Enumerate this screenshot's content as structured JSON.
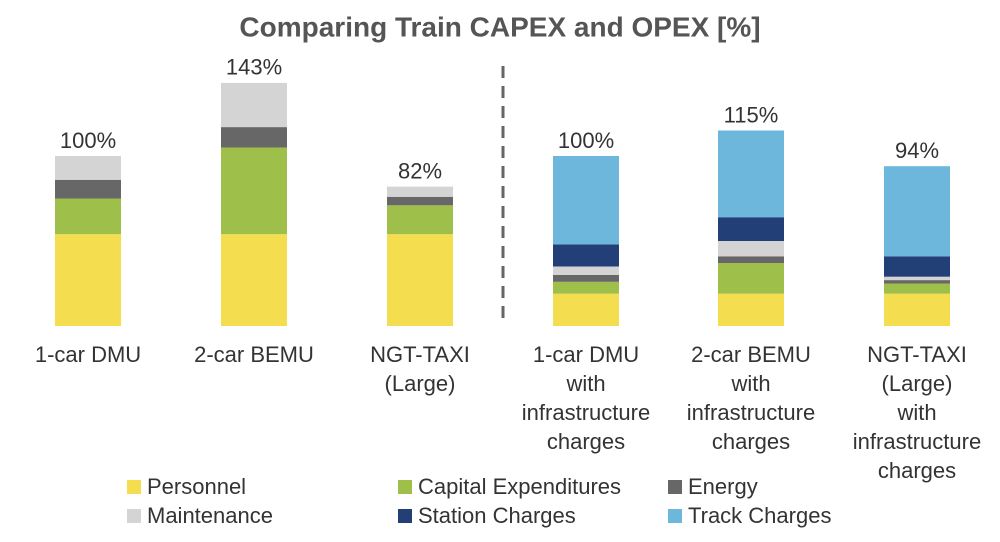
{
  "chart_data": {
    "type": "stacked-bar",
    "title": "Comparing Train CAPEX and OPEX [%]",
    "categories": [
      "1-car DMU",
      "2-car BEMU",
      "NGT-TAXI\n(Large)",
      "1-car DMU\nwith\ninfrastructure\ncharges",
      "2-car BEMU\nwith\ninfrastructure\ncharges",
      "NGT-TAXI\n(Large)\nwith\ninfrastructure\ncharges"
    ],
    "series": [
      {
        "name": "Personnel",
        "color": "#f5dd50",
        "values": [
          54,
          54,
          54,
          19,
          19,
          19
        ]
      },
      {
        "name": "Capital Expenditures",
        "color": "#9fbf4b",
        "values": [
          21,
          51,
          17,
          7,
          18,
          6
        ]
      },
      {
        "name": "Energy",
        "color": "#676767",
        "values": [
          11,
          12,
          5,
          4,
          4,
          2
        ]
      },
      {
        "name": "Maintenance",
        "color": "#d4d4d4",
        "values": [
          14,
          26,
          6,
          5,
          9,
          2
        ]
      },
      {
        "name": "Station Charges",
        "color": "#233f78",
        "values": [
          0,
          0,
          0,
          13,
          14,
          12
        ]
      },
      {
        "name": "Track Charges",
        "color": "#6db7dc",
        "values": [
          0,
          0,
          0,
          52,
          51,
          53
        ]
      }
    ],
    "totals": [
      100,
      143,
      82,
      100,
      115,
      94
    ],
    "total_labels": [
      "100%",
      "143%",
      "82%",
      "100%",
      "115%",
      "94%"
    ]
  }
}
